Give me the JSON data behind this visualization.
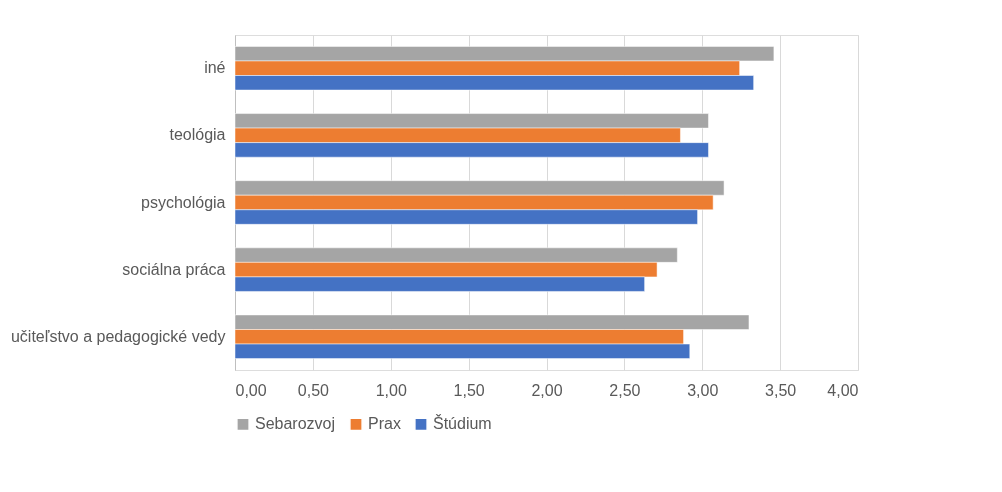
{
  "chart_data": {
    "type": "bar",
    "orientation": "horizontal",
    "categories": [
      "iné",
      "teológia",
      "psychológia",
      "sociálna práca",
      "učiteľstvo a pedagogické vedy"
    ],
    "series": [
      {
        "name": "Sebarozvoj",
        "color": "#a5a5a5",
        "values": [
          3.46,
          3.04,
          3.14,
          2.84,
          3.3
        ]
      },
      {
        "name": "Prax",
        "color": "#ed7d31",
        "values": [
          3.24,
          2.86,
          3.07,
          2.71,
          2.88
        ]
      },
      {
        "name": "Štúdium",
        "color": "#4472c4",
        "values": [
          3.33,
          3.04,
          2.97,
          2.63,
          2.92
        ]
      }
    ],
    "xlim": [
      0,
      4
    ],
    "xticks": [
      {
        "value": 0,
        "label": "0,00"
      },
      {
        "value": 0.5,
        "label": "0,50"
      },
      {
        "value": 1,
        "label": "1,00"
      },
      {
        "value": 1.5,
        "label": "1,50"
      },
      {
        "value": 2,
        "label": "2,00"
      },
      {
        "value": 2.5,
        "label": "2,50"
      },
      {
        "value": 3,
        "label": "3,00"
      },
      {
        "value": 3.5,
        "label": "3,50"
      },
      {
        "value": 4,
        "label": "4,00"
      }
    ],
    "grid": "x",
    "legend": "bottom"
  }
}
